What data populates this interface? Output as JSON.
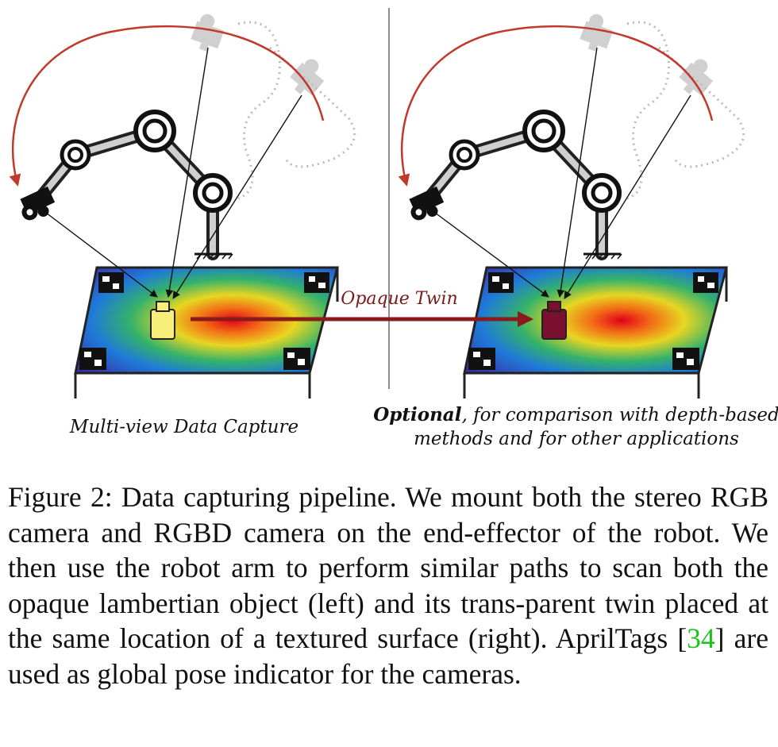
{
  "figure": {
    "left_label": "Multi-view Data Capture",
    "arrow_label": "Opaque Twin",
    "right_label_bold": "Optional",
    "right_label_rest": ", for comparison with depth-based",
    "right_label_line2": "methods and for other applications"
  },
  "caption": {
    "part1": "Figure 2: Data capturing pipeline. We mount both the stereo RGB camera and RGBD camera on the end-effector of the robot. We then use the robot arm to perform similar paths to scan both the opaque lambertian object (left) and its trans-parent twin placed at the same location of a textured surface (right). AprilTags [",
    "citation": "34",
    "part2": "] are used as global pose indicator for the cameras."
  },
  "colors": {
    "path_arc": "#c0392b",
    "arrow": "#8b1a1a",
    "opaque_object": "#7a1030",
    "transparent_object": "#f7ef7a",
    "citation": "#1ac31a"
  }
}
